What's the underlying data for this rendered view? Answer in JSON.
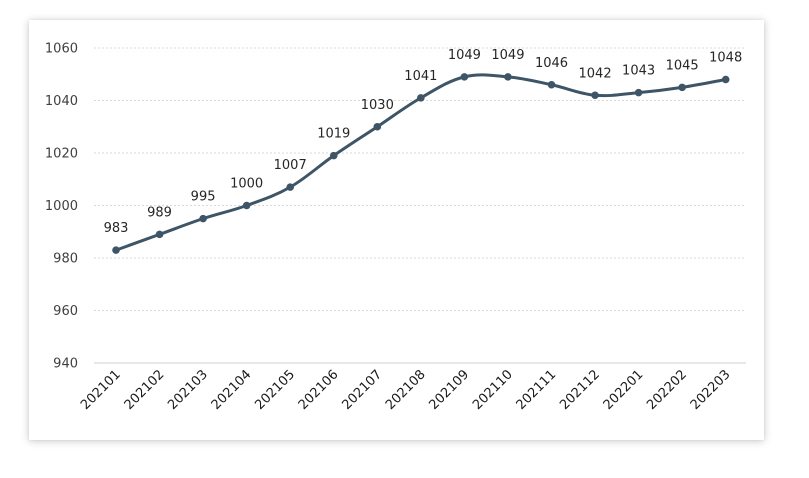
{
  "chart_data": {
    "type": "line",
    "title": "",
    "xlabel": "",
    "ylabel": "",
    "categories": [
      "202101",
      "202102",
      "202103",
      "202104",
      "202105",
      "202106",
      "202107",
      "202108",
      "202109",
      "202110",
      "202111",
      "202112",
      "202201",
      "202202",
      "202203"
    ],
    "series": [
      {
        "values": [
          983,
          989,
          995,
          1000,
          1007,
          1019,
          1030,
          1041,
          1049,
          1049,
          1046,
          1042,
          1043,
          1045,
          1048
        ],
        "data_labels": [
          "983",
          "989",
          "995",
          "1000",
          "1007",
          "1019",
          "1030",
          "1041",
          "1049",
          "1049",
          "1046",
          "1042",
          "1043",
          "1045",
          "1048"
        ]
      }
    ],
    "ylim": [
      940,
      1060
    ],
    "yticks": [
      940,
      960,
      980,
      1000,
      1020,
      1040,
      1060
    ],
    "ytick_labels": [
      "940",
      "960",
      "980",
      "1000",
      "1020",
      "1040",
      "1060"
    ],
    "grid": true,
    "line_style": "smooth",
    "legend": false,
    "colors": {
      "line": "#3d5566",
      "marker": "#3d5566",
      "grid": "#d9d9d9"
    }
  }
}
